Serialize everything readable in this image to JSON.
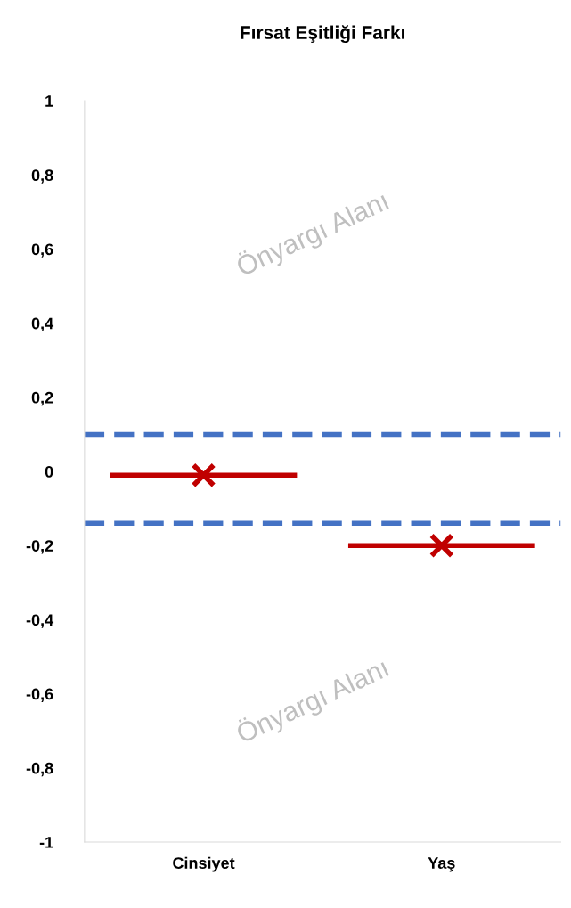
{
  "chart_data": {
    "type": "scatter",
    "title": "Fırsat Eşitliği Farkı",
    "categories": [
      "Cinsiyet",
      "Yaş"
    ],
    "series": [
      {
        "color": "#c00000",
        "values": [
          -0.01,
          -0.2
        ]
      }
    ],
    "marker": "cross",
    "ylim": [
      -1,
      1
    ],
    "yticks": [
      {
        "value": 1,
        "label": "1"
      },
      {
        "value": 0.8,
        "label": "0,8"
      },
      {
        "value": 0.6,
        "label": "0,6"
      },
      {
        "value": 0.4,
        "label": "0,4"
      },
      {
        "value": 0.2,
        "label": "0,2"
      },
      {
        "value": 0,
        "label": "0"
      },
      {
        "value": -0.2,
        "label": "-0,2"
      },
      {
        "value": -0.4,
        "label": "-0,4"
      },
      {
        "value": -0.6,
        "label": "-0,6"
      },
      {
        "value": -0.8,
        "label": "-0,8"
      },
      {
        "value": -1,
        "label": "-1"
      }
    ],
    "ref_lines": [
      {
        "axis": "y",
        "value": 0.1,
        "color": "#4472c4",
        "line_style": "dashed"
      },
      {
        "axis": "y",
        "value": -0.14,
        "color": "#4472c4",
        "line_style": "dashed"
      }
    ],
    "annotations": [
      "Önyargı Alanı",
      "Önyargı Alanı"
    ],
    "grid": false,
    "legend": false
  }
}
